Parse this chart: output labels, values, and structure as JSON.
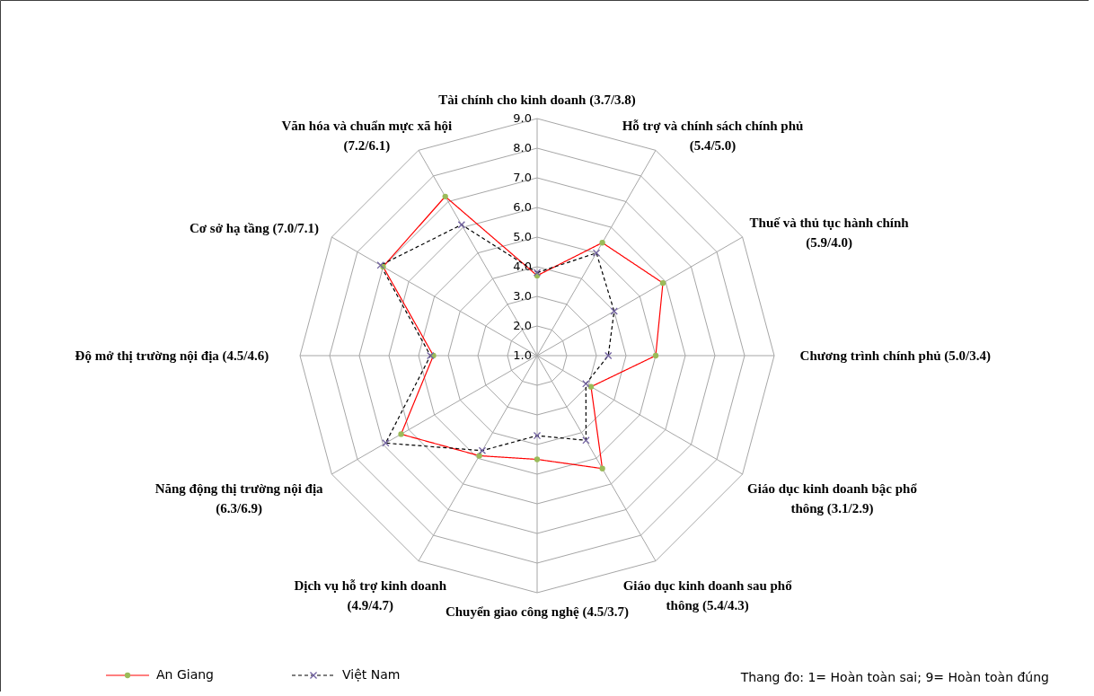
{
  "chart_data": {
    "type": "radar",
    "categories": [
      "Tài chính cho kinh doanh (3.7/3.8)",
      "Hỗ trợ và chính sách chính phủ (5.4/5.0)",
      "Thuế và thủ tục hành chính (5.9/4.0)",
      "Chương trình chính phủ (5.0/3.4)",
      "Giáo dục kinh doanh bậc phổ thông (3.1/2.9)",
      "Giáo dục kinh doanh sau phổ thông (5.4/4.3)",
      "Chuyển giao công nghệ (4.5/3.7)",
      "Dịch vụ hỗ trợ kinh doanh (4.9/4.7)",
      "Năng động thị trường nội địa (6.3/6.9)",
      "Độ mở thị trường nội địa (4.5/4.6)",
      "Cơ sở hạ tầng (7.0/7.1)",
      "Văn hóa và chuẩn mực xã hội (7.2/6.1)"
    ],
    "series": [
      {
        "name": "An Giang",
        "color": "#ff0000",
        "marker": "circle",
        "line_style": "solid",
        "values": [
          3.7,
          5.4,
          5.9,
          5.0,
          3.1,
          5.4,
          4.5,
          4.9,
          6.3,
          4.5,
          7.0,
          7.2
        ]
      },
      {
        "name": "Việt Nam",
        "color": "#000000",
        "marker": "cross",
        "line_style": "dashed",
        "values": [
          3.8,
          5.0,
          4.0,
          3.4,
          2.9,
          4.3,
          3.7,
          4.7,
          6.9,
          4.6,
          7.1,
          6.1
        ]
      }
    ],
    "ylim": [
      1,
      9
    ],
    "yticks": [
      {
        "value": 1,
        "label": "1.0"
      },
      {
        "value": 2,
        "label": "2.0"
      },
      {
        "value": 3,
        "label": "3.0"
      },
      {
        "value": 4,
        "label": "4.0"
      },
      {
        "value": 5,
        "label": "5.0"
      },
      {
        "value": 6,
        "label": "6.0"
      },
      {
        "value": 7,
        "label": "7.0"
      },
      {
        "value": 8,
        "label": "8.0"
      },
      {
        "value": 9,
        "label": "9.0"
      }
    ],
    "grid": true,
    "legend": "bottom left",
    "annotations": [
      "Thang đo: 1= Hoàn toàn sai;  9= Hoàn toàn đúng"
    ]
  }
}
